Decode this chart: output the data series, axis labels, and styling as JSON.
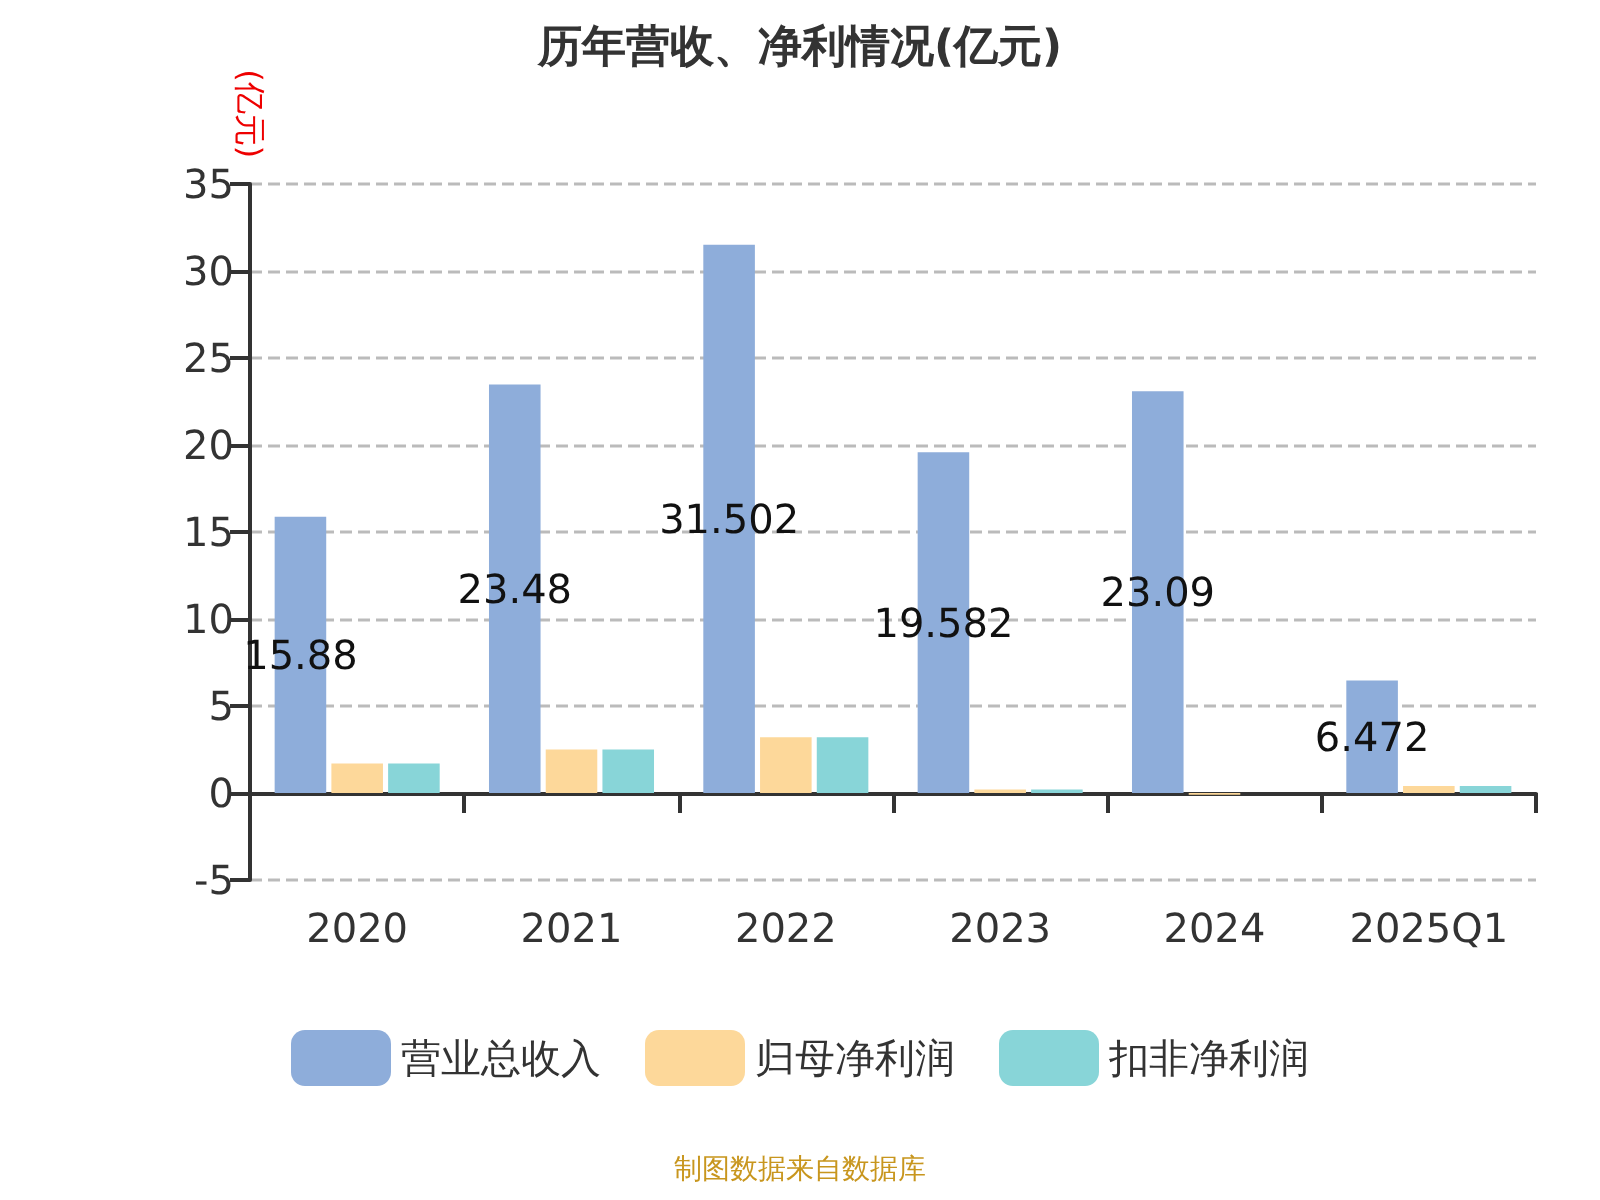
{
  "chart_data": {
    "type": "bar",
    "title": "历年营收、净利情况(亿元)",
    "ylabel": "(亿元)",
    "categories": [
      "2020",
      "2021",
      "2022",
      "2023",
      "2024",
      "2025Q1"
    ],
    "series": [
      {
        "name": "营业总收入",
        "color": "#8eadda",
        "values": [
          15.88,
          23.48,
          31.502,
          19.582,
          23.09,
          6.472
        ],
        "value_labels": [
          "15.88",
          "23.48",
          "31.502",
          "19.582",
          "23.09",
          "6.472"
        ]
      },
      {
        "name": "归母净利润",
        "color": "#fdd89a",
        "values": [
          1.7,
          2.5,
          3.2,
          0.2,
          -0.1,
          0.4
        ]
      },
      {
        "name": "扣非净利润",
        "color": "#88d5d8",
        "values": [
          1.7,
          2.5,
          3.2,
          0.2,
          null,
          0.4
        ]
      }
    ],
    "ylim": [
      -5,
      35
    ],
    "yticks": [
      -5,
      0,
      5,
      10,
      15,
      20,
      25,
      30,
      35
    ],
    "grid": "y",
    "legend": "bottom",
    "annotations": [
      "制图数据来自数据库"
    ]
  }
}
